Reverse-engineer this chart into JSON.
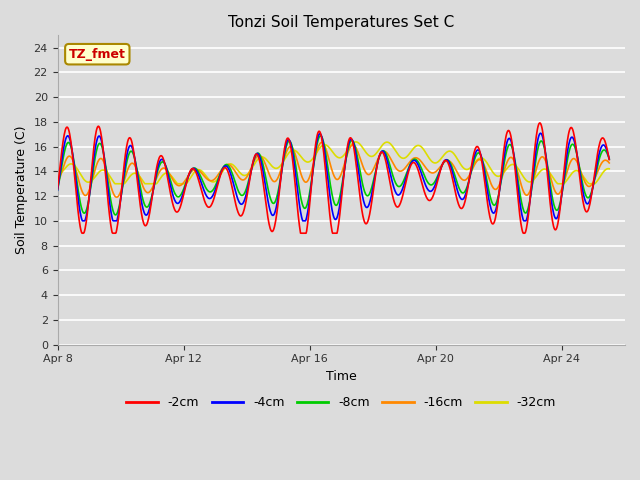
{
  "title": "Tonzi Soil Temperatures Set C",
  "xlabel": "Time",
  "ylabel": "Soil Temperature (C)",
  "ylim": [
    0,
    25
  ],
  "yticks": [
    0,
    2,
    4,
    6,
    8,
    10,
    12,
    14,
    16,
    18,
    20,
    22,
    24
  ],
  "bg_color": "#dcdcdc",
  "legend_label": "TZ_fmet",
  "legend_box_facecolor": "#ffffcc",
  "legend_box_edgecolor": "#aa8800",
  "series_colors": [
    "#ff0000",
    "#0000ff",
    "#00cc00",
    "#ff8800",
    "#dddd00"
  ],
  "series_labels": [
    "-2cm",
    "-4cm",
    "-8cm",
    "-16cm",
    "-32cm"
  ],
  "line_width": 1.2,
  "xlim": [
    8,
    26
  ],
  "xtick_days": [
    8,
    12,
    16,
    20,
    24
  ],
  "xtick_labels": [
    "Apr 8",
    "Apr 12",
    "Apr 16",
    "Apr 20",
    "Apr 24"
  ]
}
